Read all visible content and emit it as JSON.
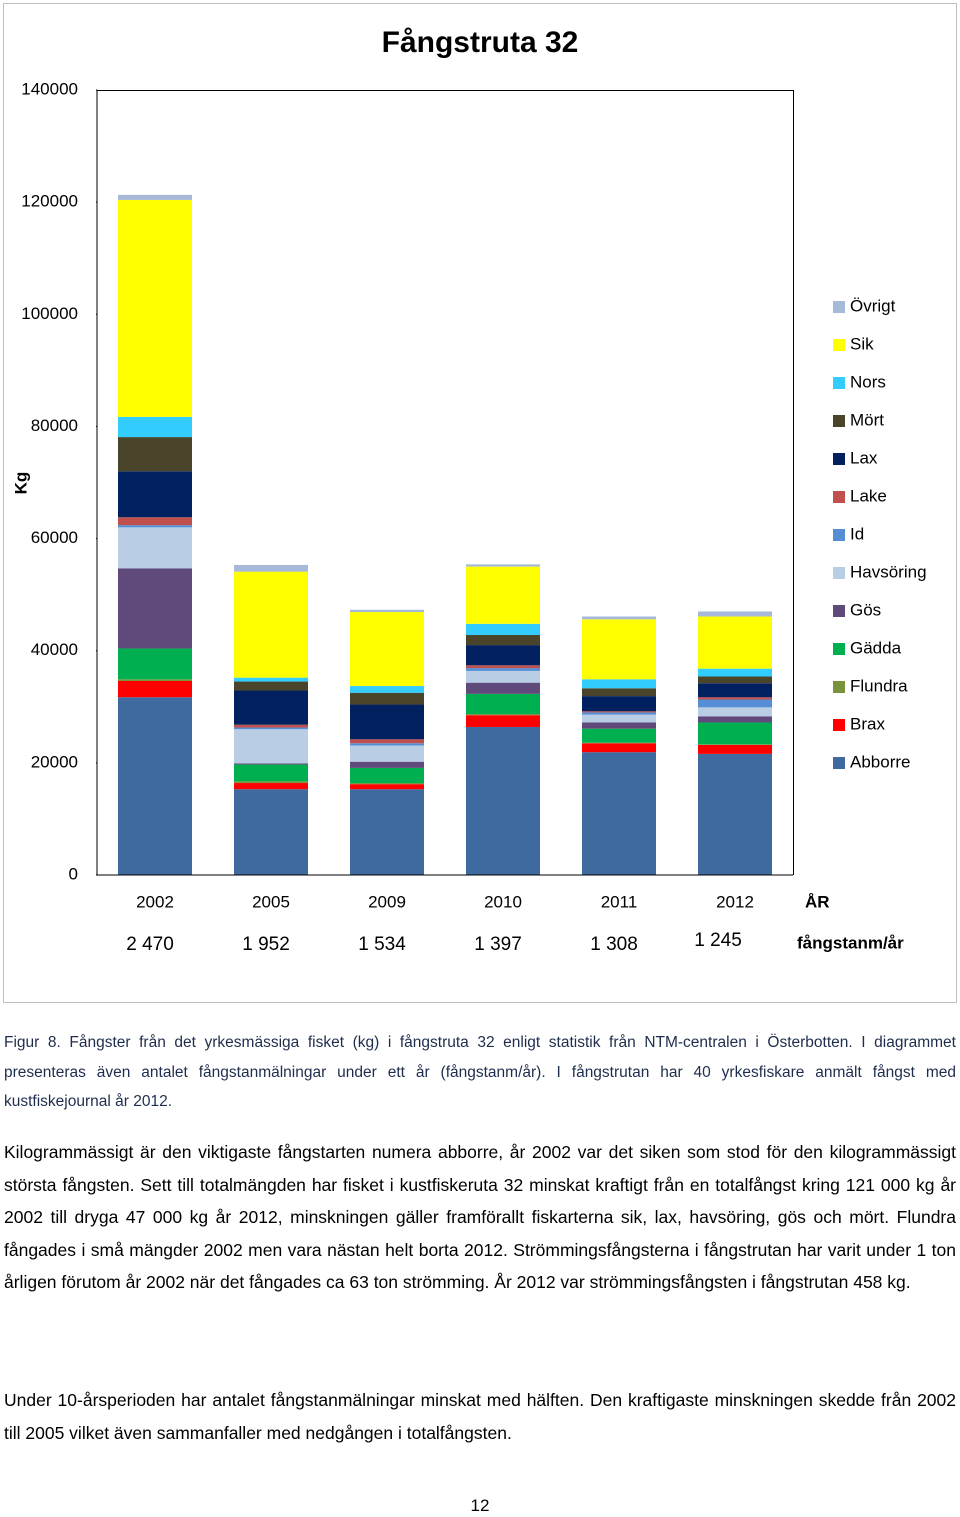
{
  "chart_data": {
    "type": "stacked-bar",
    "title": "Fångstruta 32",
    "y_label": "Kg",
    "x_label": "ÅR",
    "categories": [
      "2002",
      "2005",
      "2009",
      "2010",
      "2011",
      "2012"
    ],
    "row_label": "fångstanm/år",
    "catch_reports": [
      "2 470",
      "1 952",
      "1 534",
      "1 397",
      "1 308",
      "1 245"
    ],
    "ylim": [
      0,
      140000
    ],
    "yticks": [
      0,
      20000,
      40000,
      60000,
      80000,
      100000,
      120000,
      140000
    ],
    "legend": "right",
    "series": [
      {
        "name": "Abborre",
        "color": "#3f6aa0",
        "values": [
          31700,
          15300,
          15300,
          26400,
          21900,
          21600
        ]
      },
      {
        "name": "Brax",
        "color": "#ff0000",
        "values": [
          2900,
          1100,
          900,
          2100,
          1600,
          1600
        ]
      },
      {
        "name": "Flundra",
        "color": "#77933c",
        "values": [
          300,
          300,
          200,
          200,
          100,
          100
        ]
      },
      {
        "name": "Gädda",
        "color": "#00b050",
        "values": [
          5500,
          3000,
          2700,
          3600,
          2500,
          3900
        ]
      },
      {
        "name": "Gös",
        "color": "#604a7b",
        "values": [
          14300,
          200,
          1100,
          2000,
          1100,
          1100
        ]
      },
      {
        "name": "Havsöring",
        "color": "#b9cde5",
        "values": [
          7300,
          6100,
          2900,
          2100,
          1400,
          1600
        ]
      },
      {
        "name": "Id",
        "color": "#558ed5",
        "values": [
          400,
          300,
          400,
          500,
          400,
          1400
        ]
      },
      {
        "name": "Lake",
        "color": "#c0504d",
        "values": [
          1400,
          500,
          700,
          500,
          200,
          400
        ]
      },
      {
        "name": "Lax",
        "color": "#002060",
        "values": [
          8200,
          6100,
          6200,
          3600,
          2700,
          2500
        ]
      },
      {
        "name": "Mört",
        "color": "#4a452a",
        "values": [
          6100,
          1600,
          2100,
          1800,
          1400,
          1200
        ]
      },
      {
        "name": "Nors",
        "color": "#33ccff",
        "values": [
          3600,
          700,
          1200,
          2000,
          1600,
          1400
        ]
      },
      {
        "name": "Sik",
        "color": "#ffff00",
        "values": [
          38700,
          18900,
          13200,
          10200,
          10700,
          9300
        ]
      },
      {
        "name": "Övrigt",
        "color": "#a6b9d8",
        "values": [
          900,
          1200,
          400,
          400,
          500,
          900
        ]
      }
    ]
  },
  "caption": "Figur 8. Fångster från det yrkesmässiga fisket (kg) i fångstruta 32 enligt statistik från NTM-centralen i Österbotten. I diagrammet presenteras även antalet fångstanmälningar under ett år (fångstanm/år). I fångstrutan har 40 yrkesfiskare anmält fångst med kustfiskejournal år 2012.",
  "paragraphs": [
    "Kilogrammässigt är den viktigaste fångstarten numera abborre, år 2002 var det siken som stod för den kilogrammässigt största fångsten. Sett till totalmängden har fisket i kustfiskeruta 32 minskat kraftigt från en totalfångst kring 121 000 kg år 2002 till dryga 47 000 kg år 2012, minskningen gäller framförallt fiskarterna sik, lax, havsöring, gös och mört. Flundra fångades i små mängder 2002 men vara nästan helt borta 2012.  Strömmingsfångsterna i fångstrutan har varit under 1 ton årligen förutom år 2002 när det fångades ca 63 ton strömming. År 2012 var strömmingsfångsten i fångstrutan 458 kg.",
    "Under 10-årsperioden har antalet fångstanmälningar minskat med hälften. Den kraftigaste minskningen skedde från 2002 till 2005 vilket även sammanfaller med nedgången i totalfångsten."
  ],
  "page_number": "12"
}
